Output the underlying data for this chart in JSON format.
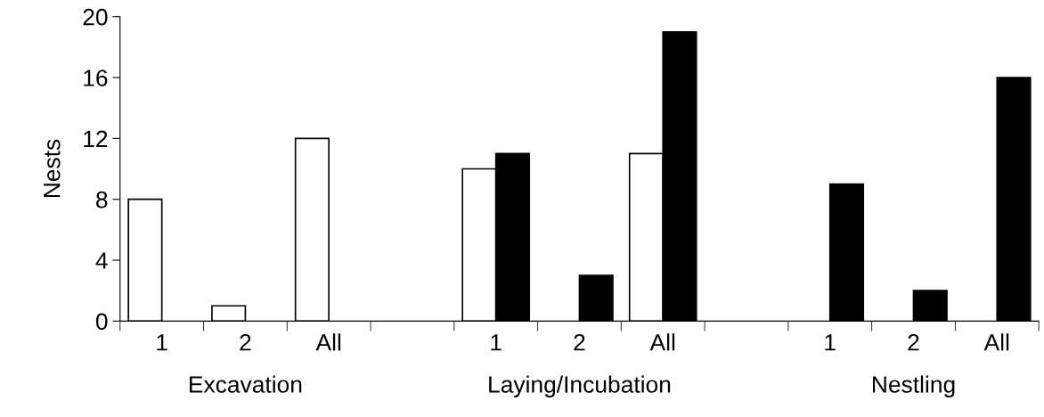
{
  "chart_data": {
    "type": "bar",
    "ylabel": "Nests",
    "categories": [
      "1",
      "2",
      "All",
      null,
      "1",
      "2",
      "All",
      null,
      "1",
      "2",
      "All"
    ],
    "series": [
      {
        "color": "#ffffff",
        "values": [
          8,
          1,
          12,
          null,
          10,
          null,
          11,
          null,
          null,
          null,
          null
        ]
      },
      {
        "color": "#000000",
        "values": [
          null,
          null,
          null,
          null,
          11,
          3,
          19,
          null,
          9,
          2,
          16
        ]
      }
    ],
    "ylim": [
      0,
      20
    ],
    "yticks": [
      0,
      4,
      8,
      12,
      16,
      20
    ],
    "grid": false,
    "legend": false,
    "annotations": [
      "Excavation",
      "Laying/Incubation",
      "Nestling"
    ]
  }
}
